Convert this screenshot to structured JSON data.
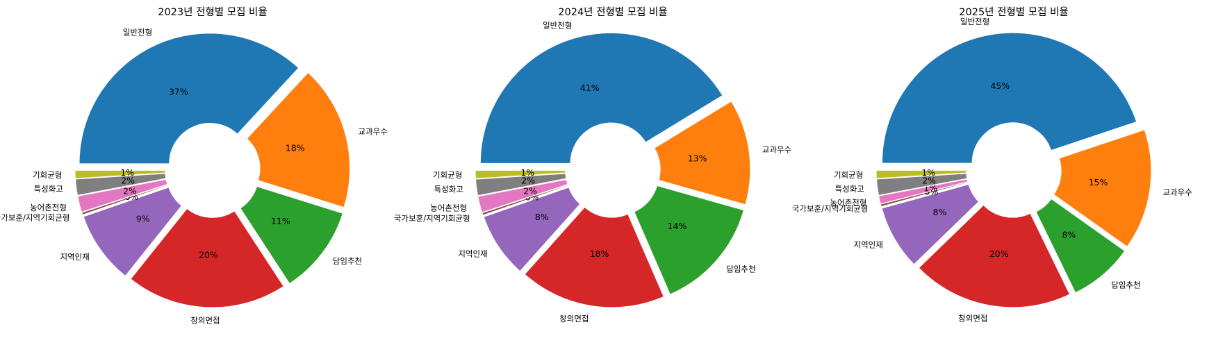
{
  "chart_data": [
    {
      "type": "pie",
      "title": "2023년 전형별 모집 비율",
      "categories": [
        "일반전형",
        "교과우수",
        "담임추천",
        "창의면접",
        "지역인재",
        "국가보훈/지역기회균형",
        "농어촌전형",
        "특성화고",
        "기회균형"
      ],
      "values": [
        37,
        18,
        11,
        20,
        9,
        0.3,
        2,
        2,
        1
      ],
      "value_labels": [
        "37%",
        "18%",
        "11%",
        "20%",
        "9%",
        "0%",
        "2%",
        "2%",
        "1%"
      ],
      "colors": [
        "#1f77b4",
        "#ff7f0e",
        "#2ca02c",
        "#d62728",
        "#9467bd",
        "#8c564b",
        "#e377c2",
        "#7f7f7f",
        "#bcbd22"
      ]
    },
    {
      "type": "pie",
      "title": "2024년 전형별 모집 비율",
      "categories": [
        "일반전형",
        "교과우수",
        "담임추천",
        "창의면접",
        "지역인재",
        "국가보훈/지역기회균형",
        "농어촌전형",
        "특성화고",
        "기회균형"
      ],
      "values": [
        41,
        13,
        14,
        18,
        8,
        0.3,
        2,
        2,
        1
      ],
      "value_labels": [
        "41%",
        "13%",
        "14%",
        "18%",
        "8%",
        "0%",
        "2%",
        "2%",
        "1%"
      ],
      "colors": [
        "#1f77b4",
        "#ff7f0e",
        "#2ca02c",
        "#d62728",
        "#9467bd",
        "#8c564b",
        "#e377c2",
        "#7f7f7f",
        "#bcbd22"
      ]
    },
    {
      "type": "pie",
      "title": "2025년 전형별 모집 비율",
      "categories": [
        "일반전형",
        "교과우수",
        "담임추천",
        "창의면접",
        "지역인재",
        "국가보훈/지역기회균형",
        "농어촌전형",
        "특성화고",
        "기회균형"
      ],
      "values": [
        45,
        15,
        8,
        20,
        8,
        0.3,
        1,
        2,
        1
      ],
      "value_labels": [
        "45%",
        "15%",
        "8%",
        "20%",
        "8%",
        "0%",
        "1%",
        "2%",
        "1%"
      ],
      "colors": [
        "#1f77b4",
        "#ff7f0e",
        "#2ca02c",
        "#d62728",
        "#9467bd",
        "#8c564b",
        "#e377c2",
        "#7f7f7f",
        "#bcbd22"
      ]
    }
  ]
}
